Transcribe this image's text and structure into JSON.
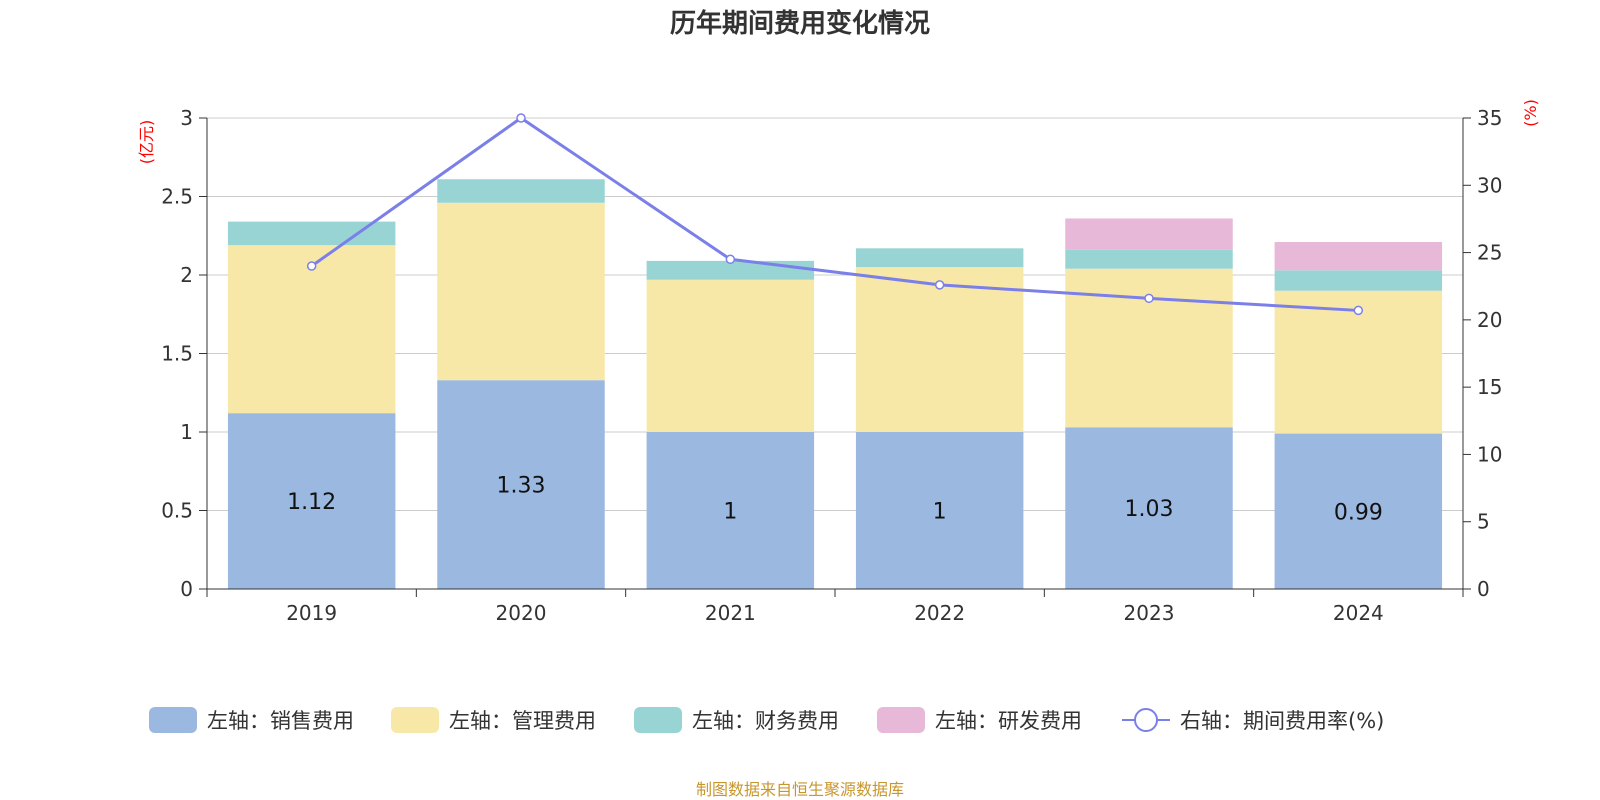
{
  "chart_data": {
    "type": "bar",
    "stacked": true,
    "title": "历年期间费用变化情况",
    "categories": [
      "2019",
      "2020",
      "2021",
      "2022",
      "2023",
      "2024"
    ],
    "left_axis": {
      "unit": "(亿元)",
      "ylim": [
        0,
        3
      ],
      "ticks": [
        "0",
        "0.5",
        "1",
        "1.5",
        "2",
        "2.5",
        "3"
      ]
    },
    "right_axis": {
      "unit": "(%)",
      "ylim": [
        0,
        35
      ],
      "ticks": [
        "0",
        "5",
        "10",
        "15",
        "20",
        "25",
        "30",
        "35"
      ]
    },
    "series": [
      {
        "name": "左轴：销售费用",
        "type": "bar",
        "axis": "left",
        "color": "#9bb8e1",
        "values": [
          1.12,
          1.33,
          1,
          1,
          1.03,
          0.99
        ],
        "labels": [
          "1.12",
          "1.33",
          "1",
          "1",
          "1.03",
          "0.99"
        ]
      },
      {
        "name": "左轴：管理费用",
        "type": "bar",
        "axis": "left",
        "color": "#f8e8a8",
        "values": [
          1.07,
          1.13,
          0.97,
          1.05,
          1.01,
          0.91
        ]
      },
      {
        "name": "左轴：财务费用",
        "type": "bar",
        "axis": "left",
        "color": "#98d4d4",
        "values": [
          0.15,
          0.15,
          0.12,
          0.12,
          0.12,
          0.13
        ]
      },
      {
        "name": "左轴：研发费用",
        "type": "bar",
        "axis": "left",
        "color": "#e8b8d8",
        "values": [
          0,
          0,
          0,
          0,
          0.2,
          0.18
        ]
      },
      {
        "name": "右轴：期间费用率(%)",
        "type": "line",
        "axis": "right",
        "color": "#7b7fe8",
        "values": [
          24.0,
          35.0,
          24.5,
          22.6,
          21.6,
          20.7
        ]
      }
    ],
    "grid": true,
    "legend_position": "bottom"
  },
  "source_text": "制图数据来自恒生聚源数据库"
}
